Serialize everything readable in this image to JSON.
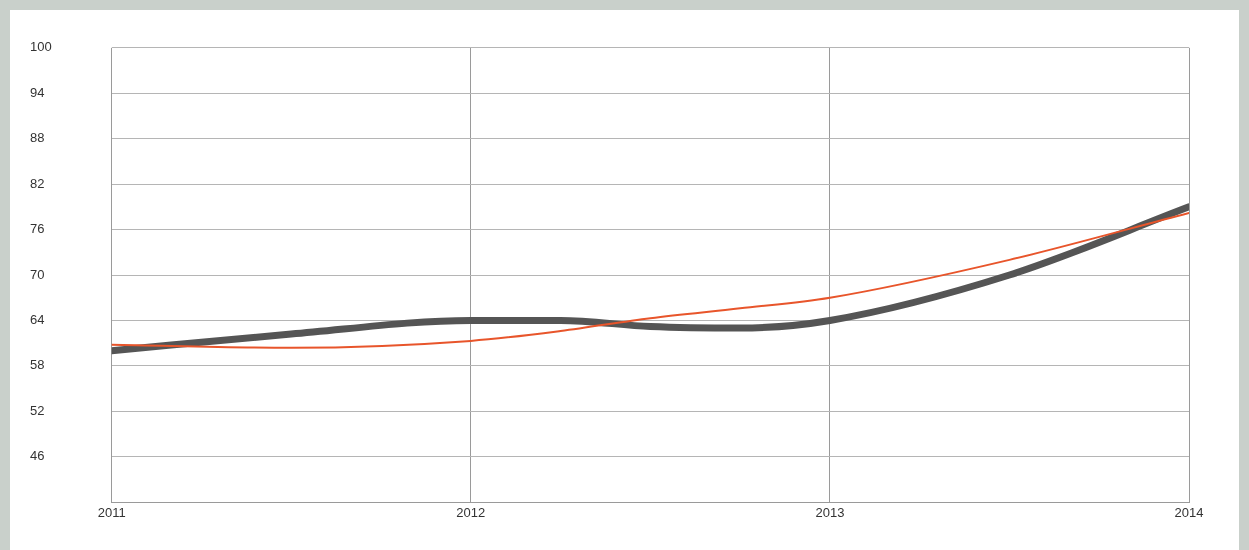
{
  "chart_data": {
    "type": "line",
    "x": [
      2011,
      2011.5,
      2012,
      2012.25,
      2012.5,
      2012.75,
      2013,
      2013.5,
      2014
    ],
    "series": [
      {
        "color": "#555555",
        "values": [
          60,
          62.2,
          64,
          64,
          63.2,
          63,
          64,
          70,
          79
        ]
      },
      {
        "color": "#e8552b",
        "values": [
          60.8,
          60.4,
          61.3,
          62.6,
          64.3,
          65.6,
          67,
          72,
          78.2
        ]
      }
    ],
    "xlim": [
      2011,
      2014
    ],
    "xticks": [
      2011,
      2012,
      2013,
      2014
    ],
    "ylim": [
      40,
      100
    ],
    "yticks": [
      {
        "value": 40,
        "label": null
      },
      46,
      52,
      58,
      64,
      70,
      76,
      82,
      88,
      94,
      100
    ],
    "grid": true,
    "legend": false,
    "marker": "none",
    "line_style": "solid"
  }
}
